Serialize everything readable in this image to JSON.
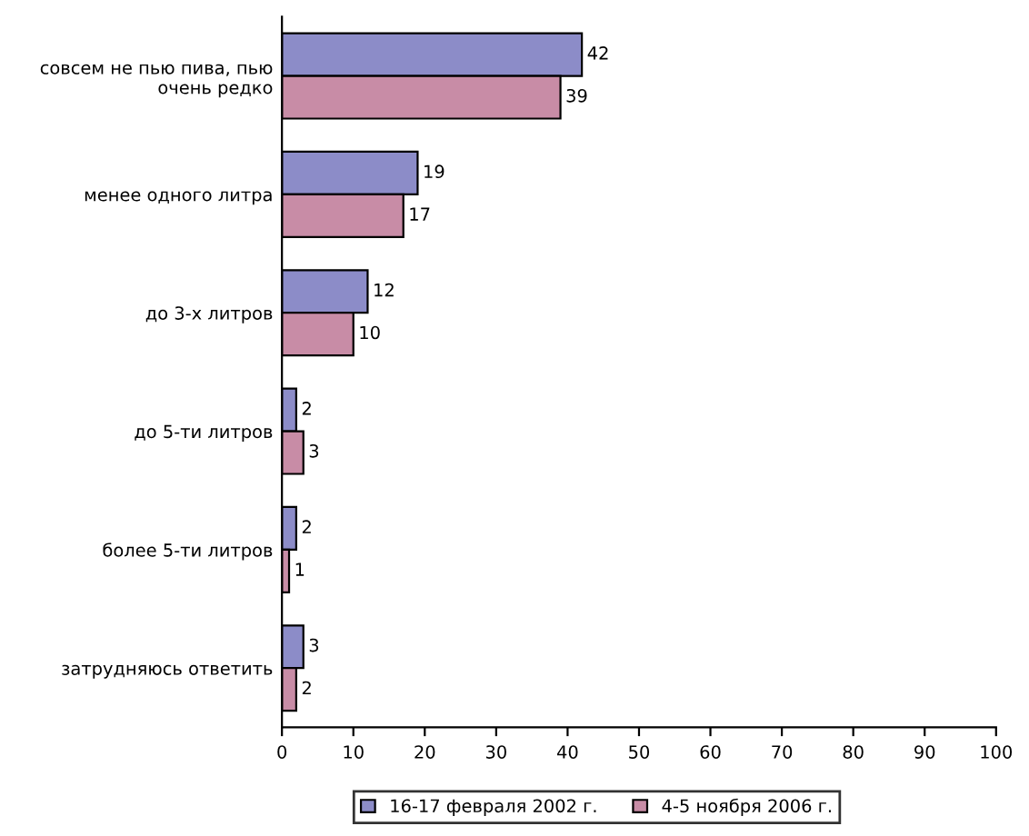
{
  "chart_data": {
    "type": "bar",
    "orientation": "horizontal",
    "categories": [
      "совсем не пью пива, пью\nочень редко",
      "менее одного литра",
      "до 3-х литров",
      "до 5-ти литров",
      "более 5-ти литров",
      "затрудняюсь ответить"
    ],
    "series": [
      {
        "name": "16-17 февраля 2002 г.",
        "color": "#8c8cc8",
        "values": [
          42,
          19,
          12,
          2,
          2,
          3
        ]
      },
      {
        "name": "4-5 ноября 2006 г.",
        "color": "#c88ca6",
        "values": [
          39,
          17,
          10,
          3,
          1,
          2
        ]
      }
    ],
    "xlim": [
      0,
      100
    ],
    "xticks": [
      0,
      10,
      20,
      30,
      40,
      50,
      60,
      70,
      80,
      90,
      100
    ],
    "data_labels": true,
    "legend": "bottom",
    "grid": false
  }
}
